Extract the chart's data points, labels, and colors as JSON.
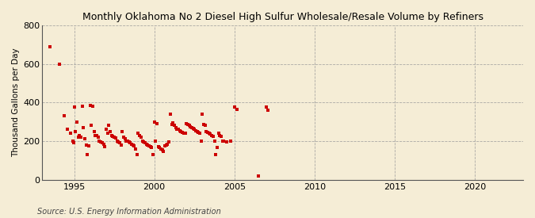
{
  "title": "Monthly Oklahoma No 2 Diesel High Sulfur Wholesale/Resale Volume by Refiners",
  "ylabel": "Thousand Gallons per Day",
  "source": "Source: U.S. Energy Information Administration",
  "background_color": "#F5EDD6",
  "plot_background_color": "#F5EDD6",
  "marker_color": "#CC0000",
  "xlim": [
    1993.0,
    2023.0
  ],
  "ylim": [
    0,
    800
  ],
  "yticks": [
    0,
    200,
    400,
    600,
    800
  ],
  "xticks": [
    1995,
    2000,
    2005,
    2010,
    2015,
    2020
  ],
  "scatter_data": [
    [
      1993.5,
      690
    ],
    [
      1994.1,
      600
    ],
    [
      1994.4,
      330
    ],
    [
      1994.6,
      260
    ],
    [
      1994.8,
      240
    ],
    [
      1994.9,
      200
    ],
    [
      1994.95,
      190
    ],
    [
      1995.0,
      375
    ],
    [
      1995.08,
      250
    ],
    [
      1995.17,
      300
    ],
    [
      1995.25,
      220
    ],
    [
      1995.33,
      230
    ],
    [
      1995.42,
      220
    ],
    [
      1995.5,
      380
    ],
    [
      1995.58,
      270
    ],
    [
      1995.67,
      210
    ],
    [
      1995.75,
      180
    ],
    [
      1995.83,
      130
    ],
    [
      1995.92,
      175
    ],
    [
      1996.0,
      385
    ],
    [
      1996.08,
      280
    ],
    [
      1996.17,
      380
    ],
    [
      1996.25,
      250
    ],
    [
      1996.33,
      230
    ],
    [
      1996.42,
      230
    ],
    [
      1996.5,
      220
    ],
    [
      1996.58,
      200
    ],
    [
      1996.67,
      195
    ],
    [
      1996.75,
      190
    ],
    [
      1996.83,
      185
    ],
    [
      1996.92,
      170
    ],
    [
      1997.0,
      260
    ],
    [
      1997.08,
      240
    ],
    [
      1997.17,
      280
    ],
    [
      1997.25,
      250
    ],
    [
      1997.33,
      230
    ],
    [
      1997.42,
      225
    ],
    [
      1997.5,
      220
    ],
    [
      1997.58,
      215
    ],
    [
      1997.67,
      200
    ],
    [
      1997.75,
      195
    ],
    [
      1997.83,
      190
    ],
    [
      1997.92,
      180
    ],
    [
      1998.0,
      250
    ],
    [
      1998.08,
      220
    ],
    [
      1998.17,
      210
    ],
    [
      1998.25,
      200
    ],
    [
      1998.33,
      200
    ],
    [
      1998.42,
      195
    ],
    [
      1998.5,
      190
    ],
    [
      1998.58,
      185
    ],
    [
      1998.67,
      180
    ],
    [
      1998.75,
      175
    ],
    [
      1998.83,
      160
    ],
    [
      1998.92,
      130
    ],
    [
      1999.0,
      240
    ],
    [
      1999.08,
      230
    ],
    [
      1999.17,
      220
    ],
    [
      1999.25,
      200
    ],
    [
      1999.33,
      195
    ],
    [
      1999.42,
      190
    ],
    [
      1999.5,
      185
    ],
    [
      1999.58,
      180
    ],
    [
      1999.67,
      175
    ],
    [
      1999.75,
      170
    ],
    [
      1999.83,
      165
    ],
    [
      1999.92,
      130
    ],
    [
      2000.0,
      300
    ],
    [
      2000.08,
      200
    ],
    [
      2000.17,
      290
    ],
    [
      2000.25,
      170
    ],
    [
      2000.33,
      165
    ],
    [
      2000.42,
      160
    ],
    [
      2000.5,
      155
    ],
    [
      2000.58,
      145
    ],
    [
      2000.67,
      175
    ],
    [
      2000.75,
      180
    ],
    [
      2000.83,
      185
    ],
    [
      2000.92,
      195
    ],
    [
      2001.0,
      340
    ],
    [
      2001.08,
      285
    ],
    [
      2001.17,
      295
    ],
    [
      2001.25,
      280
    ],
    [
      2001.33,
      270
    ],
    [
      2001.42,
      260
    ],
    [
      2001.5,
      260
    ],
    [
      2001.58,
      255
    ],
    [
      2001.67,
      250
    ],
    [
      2001.75,
      245
    ],
    [
      2001.83,
      240
    ],
    [
      2001.92,
      240
    ],
    [
      2002.0,
      290
    ],
    [
      2002.08,
      285
    ],
    [
      2002.17,
      280
    ],
    [
      2002.25,
      275
    ],
    [
      2002.33,
      270
    ],
    [
      2002.42,
      265
    ],
    [
      2002.5,
      260
    ],
    [
      2002.58,
      255
    ],
    [
      2002.67,
      250
    ],
    [
      2002.75,
      245
    ],
    [
      2002.83,
      240
    ],
    [
      2002.92,
      200
    ],
    [
      2003.0,
      340
    ],
    [
      2003.08,
      285
    ],
    [
      2003.17,
      280
    ],
    [
      2003.25,
      250
    ],
    [
      2003.33,
      245
    ],
    [
      2003.42,
      240
    ],
    [
      2003.5,
      235
    ],
    [
      2003.58,
      230
    ],
    [
      2003.67,
      225
    ],
    [
      2003.75,
      200
    ],
    [
      2003.83,
      130
    ],
    [
      2003.92,
      165
    ],
    [
      2004.0,
      240
    ],
    [
      2004.08,
      230
    ],
    [
      2004.17,
      225
    ],
    [
      2004.25,
      200
    ],
    [
      2004.33,
      200
    ],
    [
      2004.5,
      195
    ],
    [
      2004.75,
      200
    ],
    [
      2005.0,
      375
    ],
    [
      2005.17,
      365
    ],
    [
      2006.5,
      18
    ],
    [
      2007.0,
      375
    ],
    [
      2007.08,
      360
    ]
  ]
}
